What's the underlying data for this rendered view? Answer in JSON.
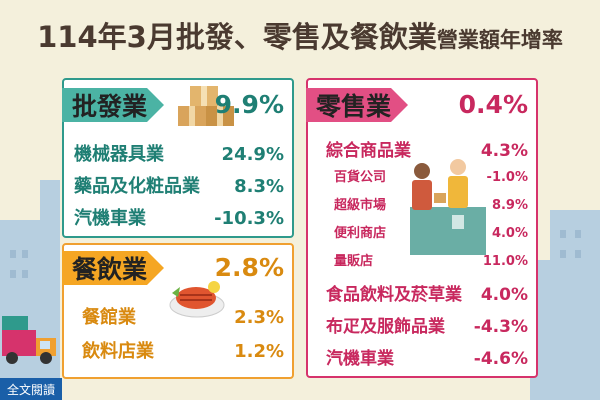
{
  "title": {
    "part1": "114年3月批發",
    "sep": "、",
    "part2": "零售及餐飲業",
    "part3": "營業額年增率"
  },
  "wholesale": {
    "label": "批發業",
    "value": "9.9%",
    "rows": [
      {
        "name": "機械器具業",
        "value": "24.9%"
      },
      {
        "name": "藥品及化粧品業",
        "value": "8.3%"
      },
      {
        "name": "汽機車業",
        "value": "-10.3%"
      }
    ]
  },
  "food": {
    "label": "餐飲業",
    "value": "2.8%",
    "rows": [
      {
        "name": "餐館業",
        "value": "2.3%"
      },
      {
        "name": "飲料店業",
        "value": "1.2%"
      }
    ]
  },
  "retail": {
    "label": "零售業",
    "value": "0.4%",
    "rows": [
      {
        "name": "綜合商品業",
        "value": "4.3%"
      },
      {
        "name": "百貨公司",
        "value": "-1.0%"
      },
      {
        "name": "超級市場",
        "value": "8.9%"
      },
      {
        "name": "便利商店",
        "value": "4.0%"
      },
      {
        "name": "量販店",
        "value": "11.0%"
      },
      {
        "name": "食品飲料及菸草業",
        "value": "4.0%"
      },
      {
        "name": "布疋及服飾品業",
        "value": "-4.3%"
      },
      {
        "name": "汽機車業",
        "value": "-4.6%"
      }
    ]
  },
  "read_button": "全文閱讀",
  "colors": {
    "teal": "#4bb3a4",
    "red": "#e24f84",
    "orange": "#f5a623",
    "background": "#f4f0dc"
  },
  "icons": [
    "boxes-icon",
    "shopkeeper-icon",
    "grilled-fish-icon",
    "trucks-icon",
    "city-skyline"
  ]
}
